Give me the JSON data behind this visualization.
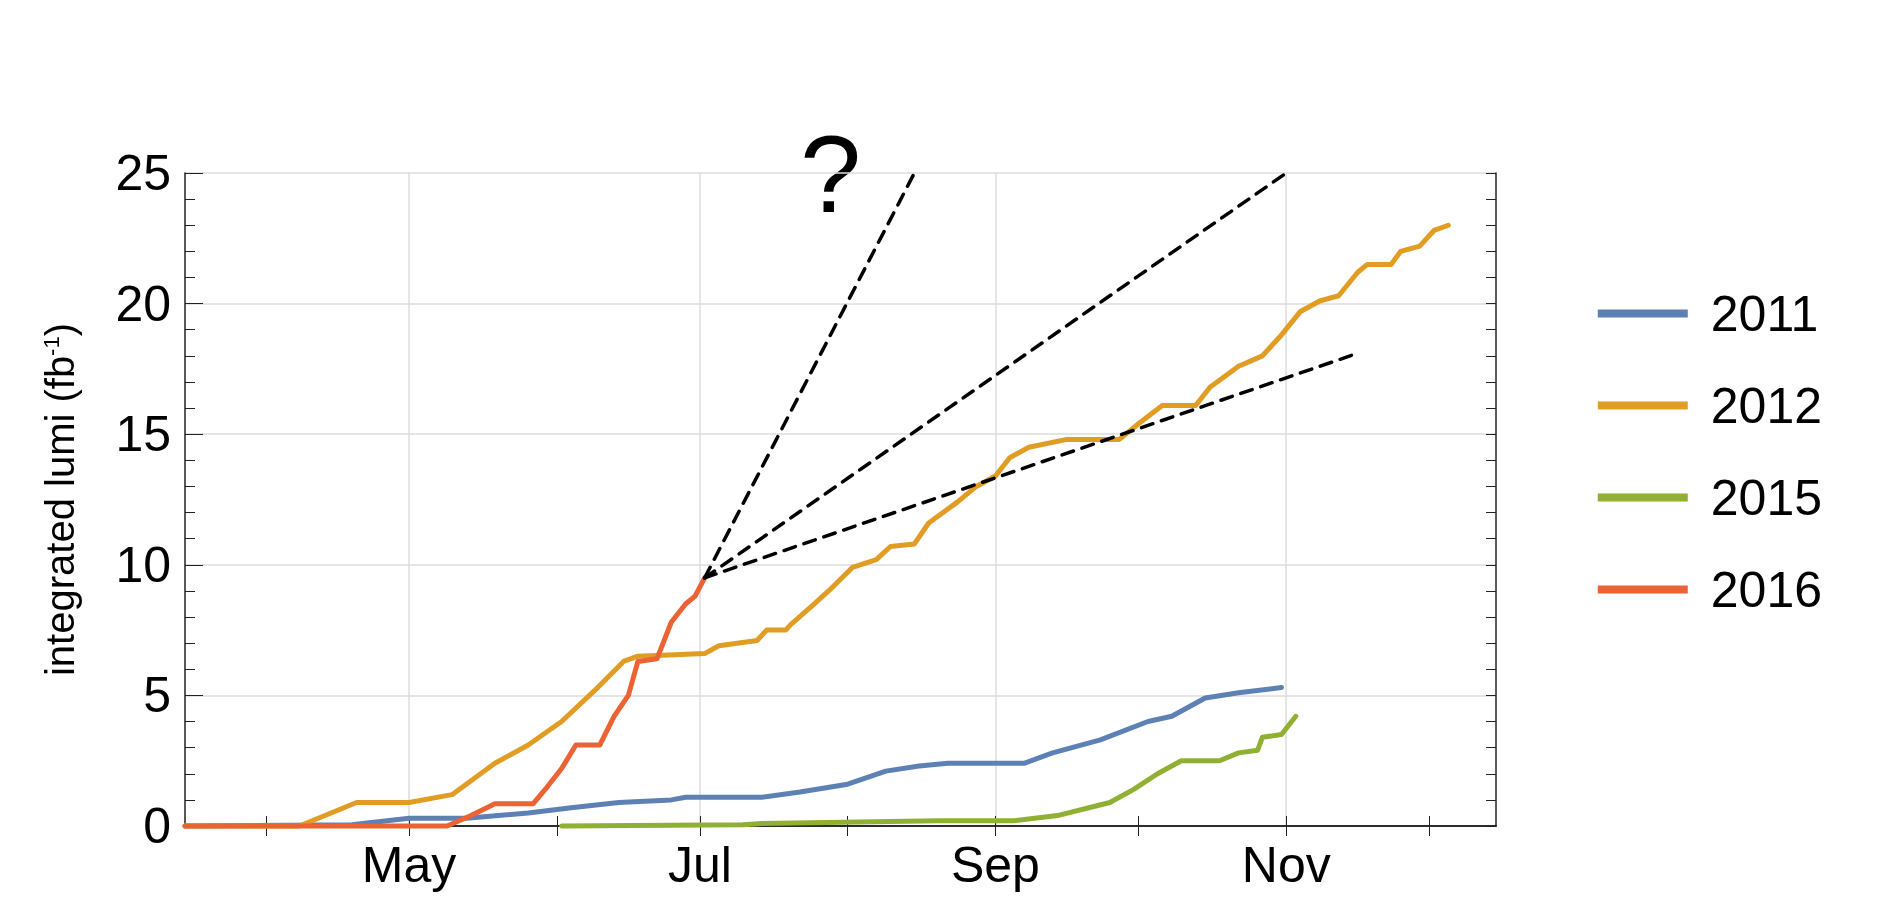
{
  "chart_data": {
    "type": "line",
    "ylabel": "integrated lumi (fb$^{-1}$)",
    "xlim": [
      "--03-15",
      "--12-15"
    ],
    "ylim": [
      0,
      25
    ],
    "xticks": [
      {
        "value": "--04-01",
        "label": null
      },
      {
        "value": "--05-01",
        "label": "May"
      },
      {
        "value": "--06-01",
        "label": null
      },
      {
        "value": "--07-01",
        "label": "Jul"
      },
      {
        "value": "--08-01",
        "label": null
      },
      {
        "value": "--09-01",
        "label": "Sep"
      },
      {
        "value": "--10-01",
        "label": null
      },
      {
        "value": "--11-01",
        "label": "Nov"
      },
      {
        "value": "--12-01",
        "label": null
      }
    ],
    "yticks": [
      0,
      {
        "value": 1,
        "label": null
      },
      {
        "value": 2,
        "label": null
      },
      {
        "value": 3,
        "label": null
      },
      {
        "value": 4,
        "label": null
      },
      5,
      {
        "value": 6,
        "label": null
      },
      {
        "value": 7,
        "label": null
      },
      {
        "value": 8,
        "label": null
      },
      {
        "value": 9,
        "label": null
      },
      10,
      {
        "value": 11,
        "label": null
      },
      {
        "value": 12,
        "label": null
      },
      {
        "value": 13,
        "label": null
      },
      {
        "value": 14,
        "label": null
      },
      15,
      {
        "value": 16,
        "label": null
      },
      {
        "value": 17,
        "label": null
      },
      {
        "value": 18,
        "label": null
      },
      {
        "value": 19,
        "label": null
      },
      20,
      {
        "value": 21,
        "label": null
      },
      {
        "value": 22,
        "label": null
      },
      {
        "value": 23,
        "label": null
      },
      {
        "value": 24,
        "label": null
      },
      25
    ],
    "grid": true,
    "legend": "right",
    "marker": "none",
    "line_style": "solid",
    "annotations": [
      "?"
    ],
    "series": [
      {
        "name": "2011",
        "color": "#5e81b5",
        "x": [
          "--03-15",
          "--04-19",
          "--05-01",
          "--05-13",
          "--05-26",
          "--06-04",
          "--06-14",
          "--06-25",
          "--06-28",
          "--07-14",
          "--07-22",
          "--08-01",
          "--08-09",
          "--08-16",
          "--08-22",
          "--09-07",
          "--09-13",
          "--09-23",
          "--10-03",
          "--10-08",
          "--10-15",
          "--10-22",
          "--10-31"
        ],
        "values": [
          0,
          0.05,
          0.3,
          0.3,
          0.5,
          0.7,
          0.9,
          1.0,
          1.1,
          1.1,
          1.3,
          1.6,
          2.1,
          2.3,
          2.4,
          2.4,
          2.8,
          3.3,
          4.0,
          4.2,
          4.9,
          5.1,
          5.3
        ]
      },
      {
        "name": "2012",
        "color": "#e19c24",
        "x": [
          "--03-15",
          "--04-08",
          "--04-20",
          "--05-01",
          "--05-10",
          "--05-19",
          "--05-26",
          "--06-02",
          "--06-09",
          "--06-15",
          "--06-18",
          "--07-02",
          "--07-05",
          "--07-13",
          "--07-15",
          "--07-19",
          "--07-20",
          "--07-25",
          "--07-28",
          "--08-02",
          "--08-07",
          "--08-10",
          "--08-15",
          "--08-18",
          "--08-24",
          "--08-28",
          "--09-01",
          "--09-04",
          "--09-08",
          "--09-16",
          "--09-27",
          "--10-01",
          "--10-06",
          "--10-13",
          "--10-16",
          "--10-22",
          "--10-27",
          "--10-31",
          "--11-04",
          "--11-08",
          "--11-12",
          "--11-16",
          "--11-18",
          "--11-23",
          "--11-25",
          "--11-29",
          "--12-02",
          "--12-05"
        ],
        "values": [
          0,
          0,
          0.9,
          0.9,
          1.2,
          2.4,
          3.1,
          4.0,
          5.2,
          6.3,
          6.5,
          6.6,
          6.9,
          7.1,
          7.5,
          7.5,
          7.7,
          8.5,
          9.0,
          9.9,
          10.2,
          10.7,
          10.8,
          11.6,
          12.4,
          13.0,
          13.4,
          14.1,
          14.5,
          14.8,
          14.8,
          15.4,
          16.1,
          16.1,
          16.8,
          17.6,
          18.0,
          18.8,
          19.7,
          20.1,
          20.3,
          21.2,
          21.5,
          21.5,
          22.0,
          22.2,
          22.8,
          23.0
        ]
      },
      {
        "name": "2015",
        "color": "#8fb032",
        "x": [
          "--06-02",
          "--07-10",
          "--07-14",
          "--08-20",
          "--09-05",
          "--09-14",
          "--09-25",
          "--09-30",
          "--10-05",
          "--10-10",
          "--10-18",
          "--10-22",
          "--10-26",
          "--10-27",
          "--10-31",
          "--11-03"
        ],
        "values": [
          0,
          0.05,
          0.1,
          0.2,
          0.2,
          0.4,
          0.9,
          1.4,
          2.0,
          2.5,
          2.5,
          2.8,
          2.9,
          3.4,
          3.5,
          4.2
        ]
      },
      {
        "name": "2016",
        "color": "#eb6235",
        "x": [
          "--03-15",
          "--05-09",
          "--05-14",
          "--05-19",
          "--05-27",
          "--05-30",
          "--06-02",
          "--06-05",
          "--06-10",
          "--06-13",
          "--06-16",
          "--06-18",
          "--06-22",
          "--06-25",
          "--06-28",
          "--06-30",
          "--07-02"
        ],
        "values": [
          0,
          0,
          0.4,
          0.85,
          0.85,
          1.5,
          2.2,
          3.1,
          3.1,
          4.2,
          5.0,
          6.3,
          6.4,
          7.8,
          8.5,
          8.8,
          9.5
        ]
      },
      {
        "color": "#000000",
        "line_style": "dashed",
        "x": [
          "--07-02",
          "--08-15"
        ],
        "values": [
          9.5,
          25
        ]
      },
      {
        "color": "#000000",
        "line_style": "dashed",
        "x": [
          "--07-02",
          "--11-01"
        ],
        "values": [
          9.5,
          25
        ]
      },
      {
        "color": "#000000",
        "line_style": "dashed",
        "x": [
          "--07-02",
          "--11-16"
        ],
        "values": [
          9.5,
          18.1
        ]
      }
    ]
  }
}
